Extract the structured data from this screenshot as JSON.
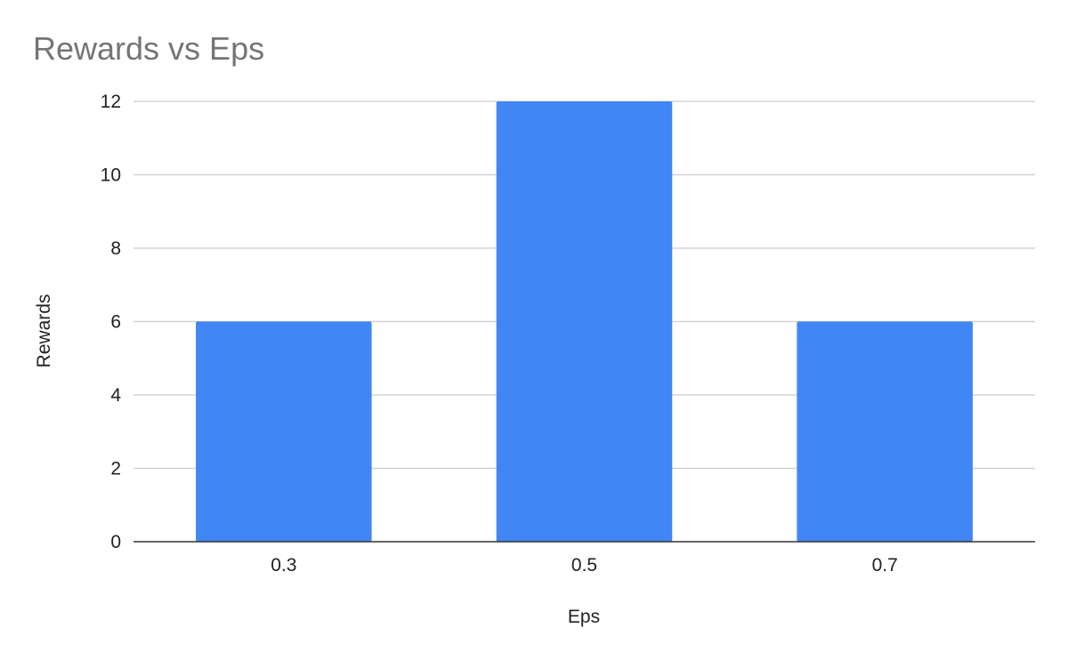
{
  "chart_data": {
    "type": "bar",
    "title": "Rewards vs Eps",
    "xlabel": "Eps",
    "ylabel": "Rewards",
    "categories": [
      "0.3",
      "0.5",
      "0.7"
    ],
    "values": [
      6,
      12,
      6
    ],
    "ylim": [
      0,
      12
    ],
    "yticks": [
      "0",
      "2",
      "4",
      "6",
      "8",
      "10",
      "12"
    ],
    "grid": true,
    "legend": "none",
    "bar_color": "#4285f4",
    "title_color": "#757575"
  }
}
